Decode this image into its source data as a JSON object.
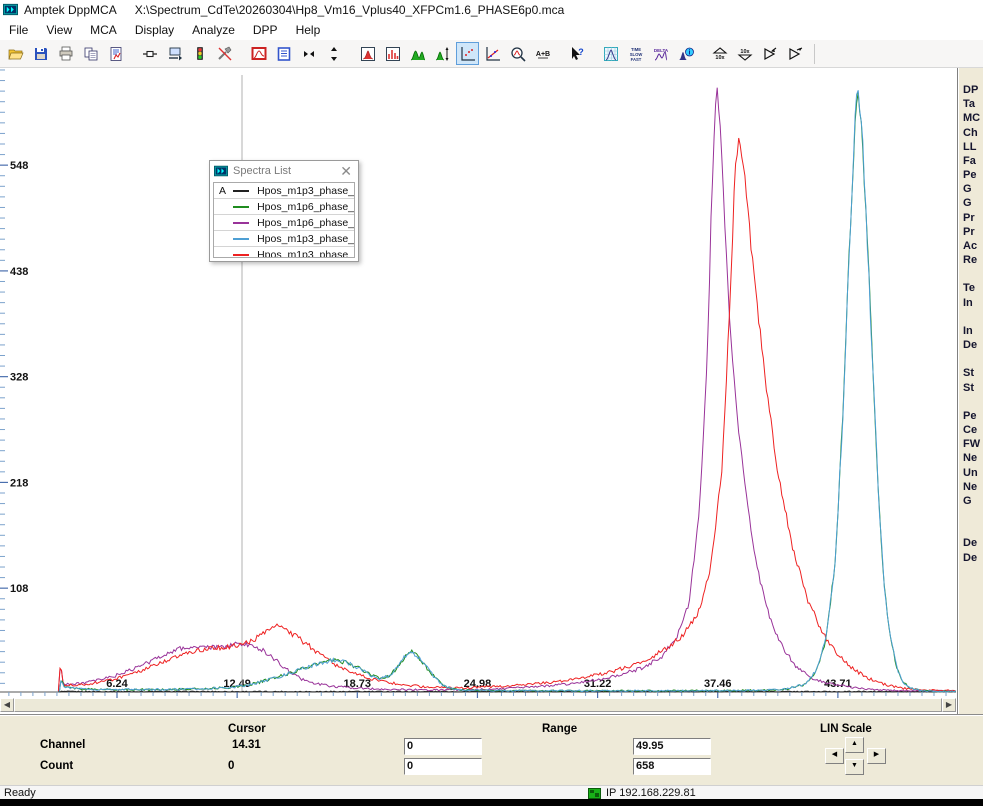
{
  "window": {
    "app_title": "Amptek DppMCA",
    "file_path": "X:\\Spectrum_CdTe\\20260304\\Hp8_Vm16_Vplus40_XFPCm1.6_PHASE6p0.mca"
  },
  "menu": [
    "File",
    "View",
    "MCA",
    "Display",
    "Analyze",
    "DPP",
    "Help"
  ],
  "toolbar": [
    {
      "name": "open-file"
    },
    {
      "name": "save-file"
    },
    {
      "name": "print"
    },
    {
      "name": "copy"
    },
    {
      "name": "report"
    },
    {
      "name": "gap"
    },
    {
      "name": "connect"
    },
    {
      "name": "device-download"
    },
    {
      "name": "acquisition-traffic-light"
    },
    {
      "name": "configure"
    },
    {
      "name": "gap"
    },
    {
      "name": "display-spectrum"
    },
    {
      "name": "info-list"
    },
    {
      "name": "expand-horizontal"
    },
    {
      "name": "expand-vertical"
    },
    {
      "name": "gap"
    },
    {
      "name": "zoom-box"
    },
    {
      "name": "histogram-box"
    },
    {
      "name": "peaks-view"
    },
    {
      "name": "peak-autoscale"
    },
    {
      "name": "dots-plot",
      "selected": true
    },
    {
      "name": "line-fit"
    },
    {
      "name": "zoom-region"
    },
    {
      "name": "sum-a-plus-b"
    },
    {
      "name": "gap"
    },
    {
      "name": "help-pointer"
    },
    {
      "name": "gap"
    },
    {
      "name": "grid-peak"
    },
    {
      "name": "time-slow-fast"
    },
    {
      "name": "delta"
    },
    {
      "name": "peak-info"
    },
    {
      "name": "gap"
    },
    {
      "name": "scale-up-10x"
    },
    {
      "name": "scale-down-10x"
    },
    {
      "name": "roi-arrow-left"
    },
    {
      "name": "roi-arrow-right"
    }
  ],
  "spectra_list": {
    "title": "Spectra List",
    "rows": [
      {
        "label": "A",
        "color": "#222222",
        "name": "Hpos_m1p3_phase_"
      },
      {
        "label": "",
        "color": "#1f8c1f",
        "name": "Hpos_m1p6_phase_"
      },
      {
        "label": "",
        "color": "#993399",
        "name": "Hpos_m1p6_phase_"
      },
      {
        "label": "",
        "color": "#4e9fd4",
        "name": "Hpos_m1p3_phase_"
      },
      {
        "label": "",
        "color": "#ee2222",
        "name": "Hpos_m1p3_phase_"
      }
    ]
  },
  "info_panel": {
    "lines": [
      "DP",
      "Ta",
      "MC",
      "Ch",
      "LL",
      "Fa",
      "Pe",
      "G",
      "G",
      "Pr",
      "Pr",
      "Ac",
      "Re",
      "",
      "Te",
      "In",
      "",
      "In",
      "De",
      "",
      "St",
      "St",
      "",
      "Pe",
      "Ce",
      "FW",
      "Ne",
      "Un",
      "Ne",
      "G",
      "",
      "",
      "De",
      "De"
    ]
  },
  "chart_data": {
    "type": "line",
    "title": "",
    "xlabel": "",
    "ylabel": "",
    "x_range": [
      0,
      49.95
    ],
    "y_range": [
      0,
      658
    ],
    "x_major_ticks": [
      "6.24",
      "12.49",
      "18.73",
      "24.98",
      "31.22",
      "37.46",
      "43.71"
    ],
    "y_major_ticks": [
      "108",
      "218",
      "328",
      "438",
      "548"
    ],
    "grid": false,
    "legend_position": "floating-window",
    "cursor": {
      "channel_readout": "14.31",
      "count_readout": "0"
    },
    "series": [
      {
        "name": "Hpos_m1p3_phase_ (A)",
        "color": "#222222",
        "points": [
          [
            3.2,
            0.4
          ],
          [
            49.9,
            0.4
          ]
        ]
      },
      {
        "name": "Hpos_m1p6_phase_ (green)",
        "color": "#1f8c1f",
        "points": [
          [
            3.25,
            1
          ],
          [
            3.35,
            14
          ],
          [
            3.5,
            5
          ],
          [
            4.5,
            3
          ],
          [
            6,
            2.5
          ],
          [
            8,
            2.5
          ],
          [
            10,
            3
          ],
          [
            12,
            4.5
          ],
          [
            13,
            7
          ],
          [
            14,
            12
          ],
          [
            15,
            18
          ],
          [
            16,
            25
          ],
          [
            16.8,
            30
          ],
          [
            17.5,
            33
          ],
          [
            18.1,
            31
          ],
          [
            18.8,
            25
          ],
          [
            19.4,
            18
          ],
          [
            19.9,
            14
          ],
          [
            20.4,
            17
          ],
          [
            20.9,
            27
          ],
          [
            21.3,
            40
          ],
          [
            21.6,
            42
          ],
          [
            22,
            34
          ],
          [
            22.4,
            24
          ],
          [
            22.8,
            14
          ],
          [
            23.2,
            7
          ],
          [
            23.6,
            3.5
          ],
          [
            24.2,
            2
          ],
          [
            26,
            1.5
          ],
          [
            30,
            1.3
          ],
          [
            34,
            1.3
          ],
          [
            38,
            1.5
          ],
          [
            40,
            1.8
          ],
          [
            41,
            3
          ],
          [
            42,
            8
          ],
          [
            42.6,
            22
          ],
          [
            43.1,
            55
          ],
          [
            43.6,
            140
          ],
          [
            44,
            300
          ],
          [
            44.35,
            480
          ],
          [
            44.6,
            590
          ],
          [
            44.75,
            630
          ],
          [
            44.95,
            590
          ],
          [
            45.2,
            490
          ],
          [
            45.5,
            350
          ],
          [
            45.8,
            215
          ],
          [
            46.1,
            115
          ],
          [
            46.45,
            55
          ],
          [
            46.8,
            24
          ],
          [
            47.1,
            10
          ],
          [
            47.5,
            4
          ],
          [
            48,
            1.5
          ],
          [
            48.6,
            0.8
          ],
          [
            49.9,
            0.6
          ]
        ]
      },
      {
        "name": "Hpos_m1p6_phase_ (purple)",
        "color": "#993399",
        "points": [
          [
            3.2,
            1
          ],
          [
            3.3,
            30
          ],
          [
            3.45,
            9
          ],
          [
            4,
            8
          ],
          [
            5,
            11
          ],
          [
            6,
            16
          ],
          [
            7,
            23
          ],
          [
            8,
            32
          ],
          [
            8.8,
            40
          ],
          [
            9.5,
            45
          ],
          [
            10.2,
            47
          ],
          [
            11,
            46
          ],
          [
            11.8,
            47
          ],
          [
            12.5,
            50
          ],
          [
            13.1,
            49
          ],
          [
            13.7,
            45
          ],
          [
            14.2,
            38
          ],
          [
            14.8,
            28
          ],
          [
            15.4,
            18
          ],
          [
            16.1,
            11
          ],
          [
            17,
            7
          ],
          [
            18,
            5
          ],
          [
            19.3,
            3.5
          ],
          [
            20.8,
            2.6
          ],
          [
            22.5,
            2.2
          ],
          [
            24.5,
            2.4
          ],
          [
            26.5,
            3.5
          ],
          [
            28,
            5.5
          ],
          [
            29.5,
            8
          ],
          [
            31,
            12
          ],
          [
            32.3,
            17
          ],
          [
            33.5,
            25
          ],
          [
            34.5,
            36
          ],
          [
            35.3,
            55
          ],
          [
            36,
            95
          ],
          [
            36.5,
            185
          ],
          [
            36.9,
            335
          ],
          [
            37.15,
            510
          ],
          [
            37.4,
            635
          ],
          [
            37.6,
            595
          ],
          [
            37.85,
            480
          ],
          [
            38.1,
            380
          ],
          [
            38.5,
            285
          ],
          [
            39,
            195
          ],
          [
            39.5,
            130
          ],
          [
            40.1,
            82
          ],
          [
            40.8,
            48
          ],
          [
            41.5,
            27
          ],
          [
            42.3,
            15
          ],
          [
            43.2,
            9
          ],
          [
            44.2,
            5.5
          ],
          [
            45.2,
            3
          ],
          [
            46.2,
            2
          ],
          [
            47.5,
            1.2
          ],
          [
            49.9,
            0.8
          ]
        ]
      },
      {
        "name": "Hpos_m1p3_phase_ (blue)",
        "color": "#4e9fd4",
        "points": [
          [
            3.25,
            1
          ],
          [
            3.35,
            14
          ],
          [
            3.5,
            5
          ],
          [
            4.5,
            3
          ],
          [
            6,
            2.5
          ],
          [
            8,
            2.5
          ],
          [
            10,
            3
          ],
          [
            12,
            4.5
          ],
          [
            13,
            7
          ],
          [
            14,
            12
          ],
          [
            15,
            18
          ],
          [
            16,
            25
          ],
          [
            16.8,
            30
          ],
          [
            17.5,
            33
          ],
          [
            18.1,
            31
          ],
          [
            18.8,
            25
          ],
          [
            19.4,
            18
          ],
          [
            19.9,
            14
          ],
          [
            20.4,
            17
          ],
          [
            20.9,
            27
          ],
          [
            21.3,
            40
          ],
          [
            21.6,
            42
          ],
          [
            22,
            34
          ],
          [
            22.4,
            24
          ],
          [
            22.8,
            14
          ],
          [
            23.2,
            7
          ],
          [
            23.6,
            3.5
          ],
          [
            24.2,
            2
          ],
          [
            26,
            1.5
          ],
          [
            30,
            1.3
          ],
          [
            34,
            1.3
          ],
          [
            38,
            1.5
          ],
          [
            40,
            1.8
          ],
          [
            41,
            3
          ],
          [
            42,
            8
          ],
          [
            42.6,
            22
          ],
          [
            43.1,
            55
          ],
          [
            43.6,
            140
          ],
          [
            44,
            300
          ],
          [
            44.35,
            480
          ],
          [
            44.6,
            590
          ],
          [
            44.75,
            630
          ],
          [
            44.95,
            590
          ],
          [
            45.2,
            490
          ],
          [
            45.5,
            350
          ],
          [
            45.8,
            215
          ],
          [
            46.1,
            115
          ],
          [
            46.45,
            55
          ],
          [
            46.8,
            24
          ],
          [
            47.1,
            10
          ],
          [
            47.5,
            4
          ],
          [
            48,
            1.5
          ],
          [
            48.6,
            0.8
          ],
          [
            49.9,
            0.6
          ]
        ]
      },
      {
        "name": "Hpos_m1p3_phase_ (red)",
        "color": "#ee2222",
        "points": [
          [
            3.2,
            1
          ],
          [
            3.3,
            32
          ],
          [
            3.45,
            8
          ],
          [
            4,
            7
          ],
          [
            5,
            9
          ],
          [
            6,
            13
          ],
          [
            7,
            18
          ],
          [
            8,
            26
          ],
          [
            9,
            34
          ],
          [
            10,
            41
          ],
          [
            11,
            45
          ],
          [
            12,
            47
          ],
          [
            12.7,
            49
          ],
          [
            13.4,
            55
          ],
          [
            14,
            62
          ],
          [
            14.5,
            68
          ],
          [
            15,
            65
          ],
          [
            15.6,
            57
          ],
          [
            16.3,
            47
          ],
          [
            17,
            36
          ],
          [
            17.8,
            26
          ],
          [
            18.6,
            19
          ],
          [
            19.4,
            14
          ],
          [
            20.3,
            10
          ],
          [
            21.3,
            7
          ],
          [
            22.5,
            5
          ],
          [
            24,
            4.2
          ],
          [
            25.3,
            5
          ],
          [
            26.6,
            6.5
          ],
          [
            28,
            8.5
          ],
          [
            29.3,
            11
          ],
          [
            30.5,
            15
          ],
          [
            31.7,
            20
          ],
          [
            32.8,
            26
          ],
          [
            33.8,
            34
          ],
          [
            34.8,
            45
          ],
          [
            35.7,
            60
          ],
          [
            36.5,
            85
          ],
          [
            37.1,
            130
          ],
          [
            37.7,
            235
          ],
          [
            38.1,
            400
          ],
          [
            38.35,
            530
          ],
          [
            38.55,
            585
          ],
          [
            38.8,
            550
          ],
          [
            39.2,
            465
          ],
          [
            39.8,
            350
          ],
          [
            40.5,
            240
          ],
          [
            41.3,
            155
          ],
          [
            42.1,
            98
          ],
          [
            42.9,
            62
          ],
          [
            43.7,
            39
          ],
          [
            44.5,
            24
          ],
          [
            45.3,
            14
          ],
          [
            46.1,
            8
          ],
          [
            47,
            4
          ],
          [
            48,
            2.2
          ],
          [
            49,
            1.6
          ],
          [
            49.9,
            1.4
          ]
        ]
      }
    ]
  },
  "bottom": {
    "cursor_header": "Cursor",
    "channel_label": "Channel",
    "channel_value": "14.31",
    "count_label": "Count",
    "count_value": "0",
    "range_header": "Range",
    "range_channel_low": "0",
    "range_count_low": "0",
    "range_channel_high": "49.95",
    "range_count_high": "658",
    "scale_header": "LIN Scale"
  },
  "status": {
    "ready": "Ready",
    "ip": "IP 192.168.229.81"
  }
}
